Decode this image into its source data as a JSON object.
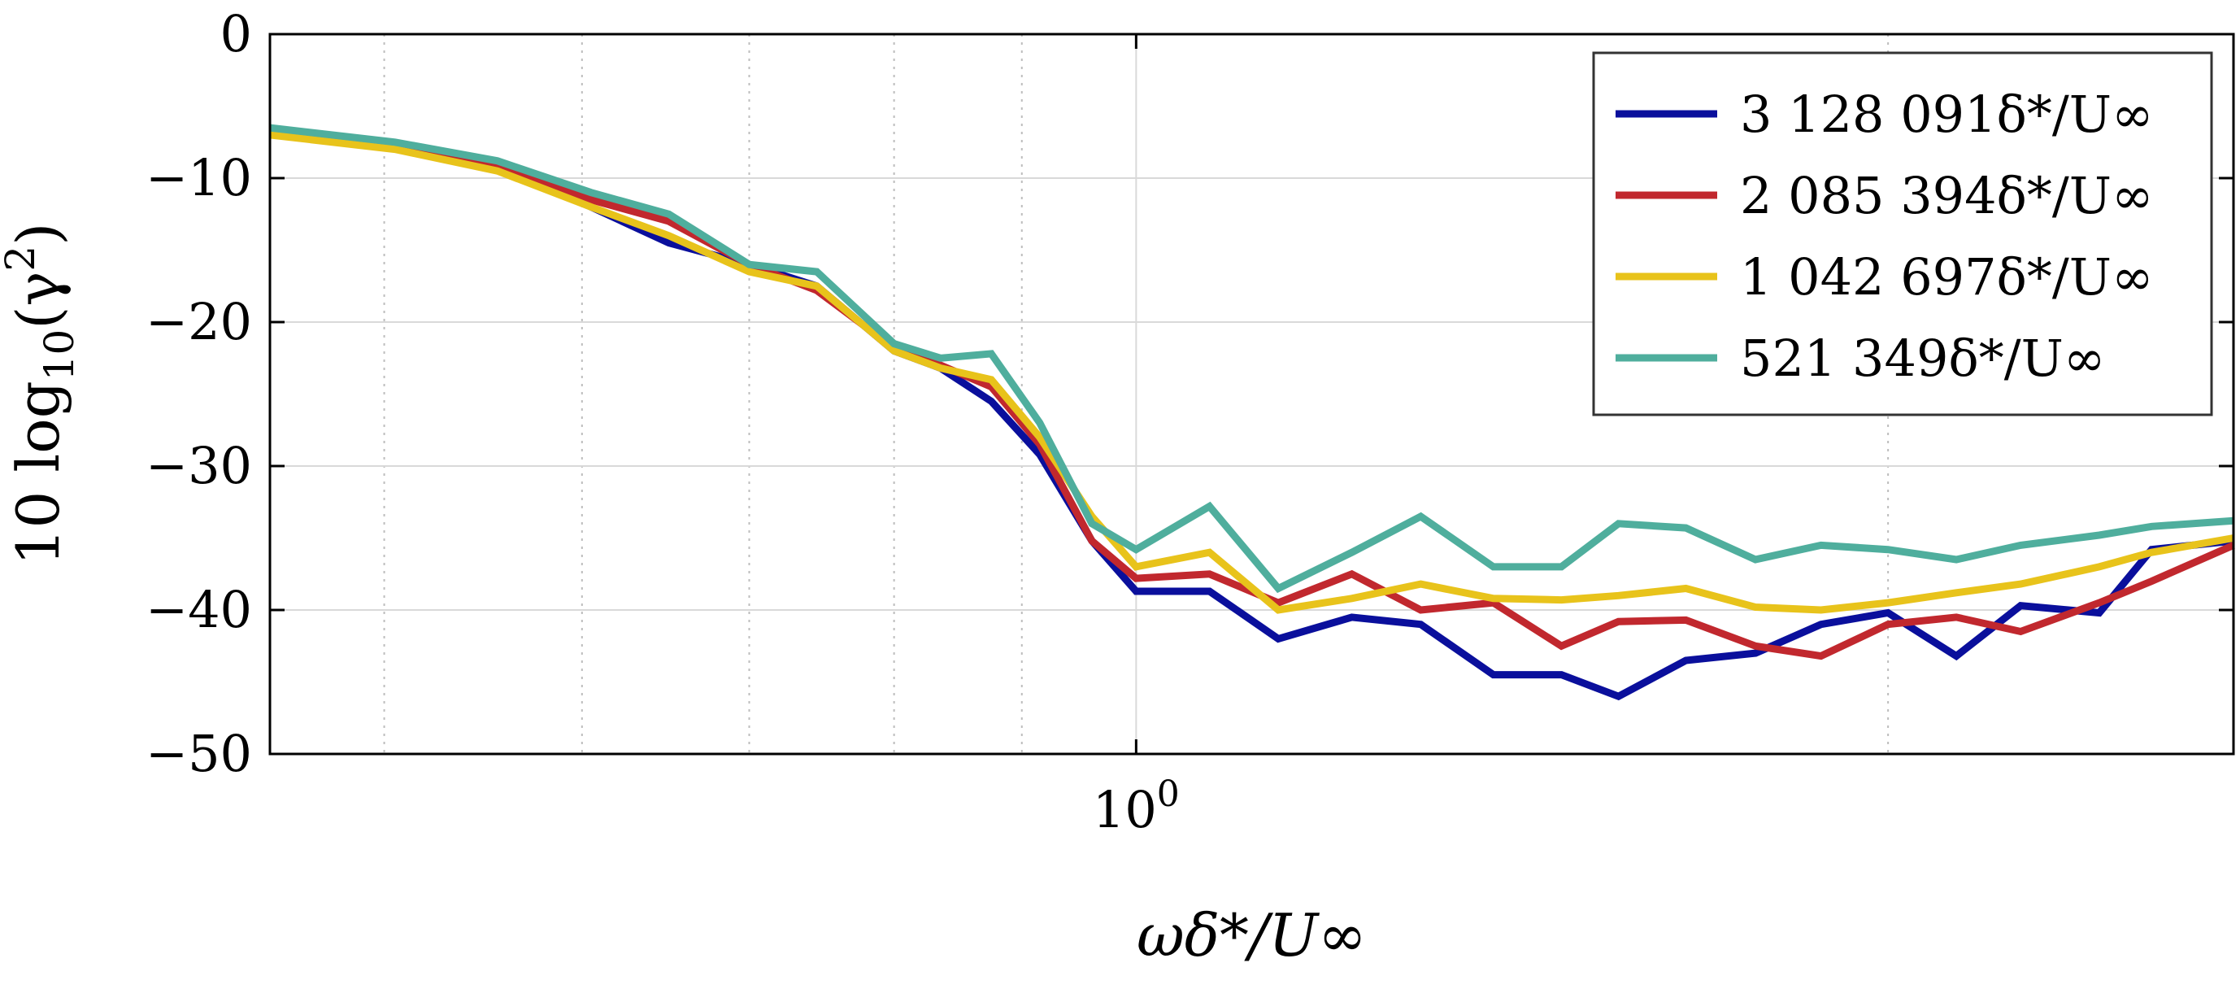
{
  "chart_data": {
    "type": "line",
    "title": "",
    "xlabel": "ωδ*/U∞",
    "ylabel": "10 log10(γ2)",
    "xscale": "log",
    "xlim": [
      0.45,
      2.75
    ],
    "ylim": [
      -50,
      0
    ],
    "grid": true,
    "yticks": [
      0,
      -10,
      -20,
      -30,
      -40,
      -50
    ],
    "ytick_labels": [
      "0",
      "−10",
      "−20",
      "−30",
      "−40",
      "−50"
    ],
    "xticks": [
      1.0
    ],
    "xtick_labels": [
      "10^0"
    ],
    "legend_position": "top-right",
    "x": [
      0.45,
      0.505,
      0.555,
      0.605,
      0.65,
      0.7,
      0.745,
      0.8,
      0.835,
      0.875,
      0.915,
      0.96,
      1.0,
      1.07,
      1.14,
      1.22,
      1.3,
      1.39,
      1.48,
      1.56,
      1.66,
      1.77,
      1.88,
      2.0,
      2.13,
      2.26,
      2.43,
      2.55,
      2.75
    ],
    "series": [
      {
        "name": "3 128 091δ*/U∞",
        "color": "#0a0f9c",
        "values": [
          -6.8,
          -7.8,
          -9.2,
          -12.0,
          -14.5,
          -16.0,
          -17.5,
          -22.0,
          -23.2,
          -25.5,
          -29.2,
          -35.2,
          -38.7,
          -38.7,
          -42.0,
          -40.5,
          -41.0,
          -44.5,
          -44.5,
          -46.0,
          -43.5,
          -43.0,
          -41.0,
          -40.2,
          -43.2,
          -39.7,
          -40.2,
          -35.8,
          -35.2
        ]
      },
      {
        "name": "2 085 394δ*/U∞",
        "color": "#c1282e",
        "values": [
          -6.8,
          -7.8,
          -9.0,
          -11.5,
          -13.0,
          -16.0,
          -17.8,
          -21.8,
          -23.0,
          -24.5,
          -28.5,
          -35.2,
          -37.8,
          -37.5,
          -39.5,
          -37.5,
          -40.0,
          -39.5,
          -42.5,
          -40.8,
          -40.7,
          -42.5,
          -43.2,
          -41.0,
          -40.5,
          -41.5,
          -39.5,
          -38.0,
          -35.5
        ]
      },
      {
        "name": "1 042 697δ*/U∞",
        "color": "#e8c31b",
        "values": [
          -7.0,
          -8.0,
          -9.5,
          -12.0,
          -14.0,
          -16.5,
          -17.5,
          -22.0,
          -23.2,
          -24.0,
          -28.0,
          -33.5,
          -37.0,
          -36.0,
          -40.0,
          -39.2,
          -38.2,
          -39.2,
          -39.3,
          -39.0,
          -38.5,
          -39.8,
          -40.0,
          -39.5,
          -38.8,
          -38.2,
          -37.0,
          -36.0,
          -35.0
        ]
      },
      {
        "name": "521 349δ*/U∞",
        "color": "#4fae9d",
        "values": [
          -6.5,
          -7.5,
          -8.8,
          -11.0,
          -12.5,
          -16.0,
          -16.5,
          -21.5,
          -22.5,
          -22.2,
          -27.0,
          -34.0,
          -35.8,
          -32.8,
          -38.5,
          -36.0,
          -33.5,
          -37.0,
          -37.0,
          -34.0,
          -34.3,
          -36.5,
          -35.5,
          -35.8,
          -36.5,
          -35.5,
          -34.8,
          -34.2,
          -33.8
        ]
      }
    ]
  }
}
